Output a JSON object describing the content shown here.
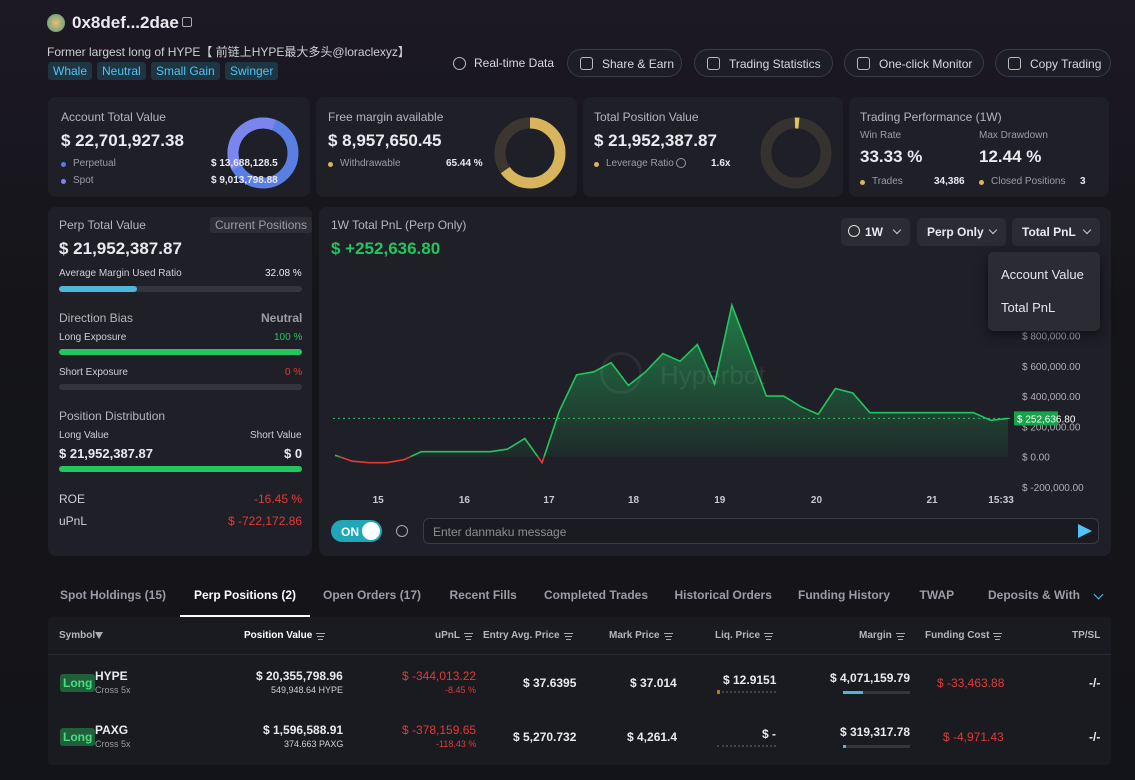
{
  "header": {
    "address": "0x8def...2dae",
    "description": "Former largest long of HYPE【 前链上HYPE最大多头@loraclexyz】",
    "tags": [
      "Whale",
      "Neutral",
      "Small Gain",
      "Swinger"
    ]
  },
  "actions": [
    "Real-time Data",
    "Share & Earn",
    "Trading Statistics",
    "One-click Monitor",
    "Copy Trading"
  ],
  "summary": {
    "account": {
      "title": "Account Total Value",
      "value": "$ 22,701,927.38",
      "rows": [
        {
          "label": "Perpetual",
          "value": "$ 13,688,128.5"
        },
        {
          "label": "Spot",
          "value": "$ 9,013,798.88"
        }
      ]
    },
    "margin": {
      "title": "Free margin available",
      "value": "$ 8,957,650.45",
      "rows": [
        {
          "label": "Withdrawable",
          "value": "65.44 %"
        }
      ]
    },
    "position": {
      "title": "Total Position Value",
      "value": "$ 21,952,387.87",
      "rows": [
        {
          "label": "Leverage Ratio",
          "value": "1.6x"
        }
      ]
    },
    "performance": {
      "title": "Trading Performance (1W)",
      "win_rate_label": "Win Rate",
      "win_rate": "33.33 %",
      "drawdown_label": "Max Drawdown",
      "drawdown": "12.44 %",
      "rows": [
        {
          "label": "Trades",
          "value": "34,386"
        },
        {
          "label": "Closed Positions",
          "value": "3"
        }
      ]
    }
  },
  "perp": {
    "title": "Perp Total Value",
    "badge": "Current Positions",
    "value": "$ 21,952,387.87",
    "margin_ratio_label": "Average Margin Used Ratio",
    "margin_ratio": {
      "value": 32.08,
      "label": "32.08 %"
    },
    "direction_label": "Direction Bias",
    "direction": "Neutral",
    "long_label": "Long Exposure",
    "long": {
      "value": 100,
      "label": "100 %"
    },
    "short_label": "Short Exposure",
    "short": {
      "value": 0,
      "label": "0 %"
    },
    "distribution_label": "Position Distribution",
    "long_value_label": "Long Value",
    "short_value_label": "Short Value",
    "long_value": "$ 21,952,387.87",
    "short_value": "$ 0",
    "roe_label": "ROE",
    "roe": "-16.45 %",
    "upnl_label": "uPnL",
    "upnl": "$ -722,172.86"
  },
  "chart": {
    "type": "line",
    "title": "1W Total PnL (Perp Only)",
    "value": "$ +252,636.80",
    "watermark": "Hyperbot",
    "values": [
      10000,
      -30000,
      -40000,
      -40000,
      -20000,
      33000,
      33000,
      33000,
      33000,
      33000,
      50000,
      120000,
      -40000,
      300000,
      540000,
      560000,
      620000,
      470000,
      560000,
      680000,
      630000,
      740000,
      480000,
      1000000,
      700000,
      400000,
      400000,
      330000,
      280000,
      450000,
      420000,
      290000,
      290000,
      290000,
      290000,
      290000,
      290000,
      290000,
      240000,
      252636.8
    ],
    "xlim": [
      0,
      39
    ],
    "ylim": [
      -220000,
      1100000
    ],
    "yticks": [
      {
        "value": 800000,
        "label": "$ 800,000.00"
      },
      {
        "value": 600000,
        "label": "$ 600,000.00"
      },
      {
        "value": 400000,
        "label": "$ 400,000.00"
      },
      {
        "value": 200000,
        "label": "$ 200,000.00"
      },
      {
        "value": 0,
        "label": "$ 0.00"
      },
      {
        "value": -200000,
        "label": "$ -200,000.00"
      }
    ],
    "xticks": [
      {
        "value": 2.5,
        "label": "15"
      },
      {
        "value": 7.5,
        "label": "16"
      },
      {
        "value": 12.4,
        "label": "17"
      },
      {
        "value": 17.3,
        "label": "18"
      },
      {
        "value": 22.3,
        "label": "19"
      },
      {
        "value": 27.9,
        "label": "20"
      },
      {
        "value": 34.6,
        "label": "21"
      },
      {
        "value": 38.6,
        "label": "15:33"
      }
    ],
    "current": {
      "value": 252636.8,
      "label": "$ 252,636.80"
    }
  },
  "controls": [
    "1W",
    "Perp Only",
    "Total PnL"
  ],
  "dropdown": [
    "Account Value",
    "Total PnL"
  ],
  "danmaku": {
    "toggle": "ON",
    "placeholder": "Enter danmaku message"
  },
  "tabs": [
    "Spot Holdings (15)",
    "Perp Positions (2)",
    "Open Orders (17)",
    "Recent Fills",
    "Completed Trades",
    "Historical Orders",
    "Funding History",
    "TWAP",
    "Deposits & Withdr"
  ],
  "table": {
    "columns": [
      "Symbol",
      "Position Value",
      "uPnL",
      "Entry Avg. Price",
      "Mark Price",
      "Liq. Price",
      "Margin",
      "Funding Cost",
      "TP/SL"
    ],
    "rows": [
      {
        "side": "Long",
        "symbol": "HYPE",
        "mode": "Cross 5x",
        "position_value": "$ 20,355,798.96",
        "position_size": "549,948.64 HYPE",
        "upnl": "$ -344,013.22",
        "upnl_pct": "-8.45 %",
        "entry": "$ 37.6395",
        "mark": "$ 37.014",
        "liq": "$ 12.9151",
        "margin": "$ 4,071,159.79",
        "funding": "$ -33,463.88",
        "tpsl": "-/-"
      },
      {
        "side": "Long",
        "symbol": "PAXG",
        "mode": "Cross 5x",
        "position_value": "$ 1,596,588.91",
        "position_size": "374.663 PAXG",
        "upnl": "$ -378,159.65",
        "upnl_pct": "-118.43 %",
        "entry": "$ 5,270.732",
        "mark": "$ 4,261.4",
        "liq": "$ -",
        "margin": "$ 319,317.78",
        "funding": "$ -4,971.43",
        "tpsl": "-/-"
      }
    ]
  }
}
